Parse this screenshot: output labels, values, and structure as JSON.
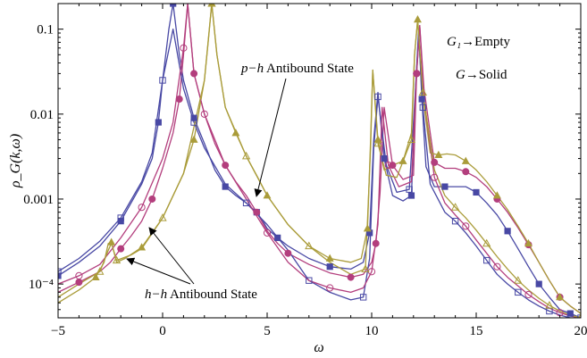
{
  "chart_data": {
    "type": "line",
    "title": "",
    "xlabel": "ω",
    "ylabel": "ρ_G(k,ω)",
    "xlim": [
      -5,
      20
    ],
    "ylim": [
      4e-05,
      0.2
    ],
    "yscale": "log",
    "grid": false,
    "xticks": [
      -5,
      0,
      5,
      10,
      15,
      20
    ],
    "xtick_labels": [
      "−5",
      "0",
      "5",
      "10",
      "15",
      "20"
    ],
    "yticks": [
      0.0001,
      0.001,
      0.01,
      0.1
    ],
    "ytick_labels": [
      "10⁻⁴",
      "0.001",
      "0.01",
      "0.1"
    ],
    "legend": {
      "placement": "top-right",
      "entries": [
        {
          "symbol": "G₁",
          "text": "→Empty"
        },
        {
          "symbol": "G",
          "text": "→Solid"
        }
      ]
    },
    "annotations": [
      {
        "text": "p−h Antibound State",
        "italic_part": "p−h",
        "arrow_to": [
          3.9,
          0.00118
        ]
      },
      {
        "text": "h−h Antibound State",
        "italic_part": "h−h",
        "arrow_to": [
          -2.2,
          0.00055
        ]
      },
      {
        "text": "",
        "arrow_to": [
          -2.4,
          0.00017
        ]
      }
    ],
    "series": [
      {
        "color": "#4848a4",
        "marker": "square",
        "x": [
          -5.0,
          -4.0,
          -3.0,
          -2.0,
          -1.0,
          -0.5,
          -0.2,
          0.0,
          0.3,
          0.5,
          0.8,
          1.0,
          1.5,
          2.0,
          2.5,
          3.0,
          3.5,
          4.0,
          4.5,
          4.8,
          5.0,
          5.5,
          6.0,
          7.0,
          8.0,
          9.0,
          9.6,
          9.9,
          10.1,
          10.3,
          10.6,
          11.0,
          11.5,
          11.9,
          12.1,
          12.25,
          12.4,
          12.6,
          13.0,
          13.5,
          14.0,
          14.5,
          15.0,
          15.5,
          16.0,
          16.5,
          17.0,
          17.5,
          18.0,
          18.5,
          19.0,
          19.5,
          20.0
        ],
        "y": [
          0.000125,
          0.00018,
          0.00028,
          0.00055,
          0.0015,
          0.003,
          0.008,
          0.025,
          0.1,
          0.2,
          0.05,
          0.025,
          0.009,
          0.0045,
          0.0022,
          0.0014,
          0.0011,
          0.0009,
          0.0007,
          0.00055,
          0.00045,
          0.00035,
          0.00028,
          0.0002,
          0.00016,
          0.00015,
          0.00018,
          0.0004,
          0.005,
          0.018,
          0.003,
          0.0011,
          0.00095,
          0.0011,
          0.02,
          0.1,
          0.015,
          0.0024,
          0.0014,
          0.0014,
          0.0014,
          0.0014,
          0.0012,
          0.0009,
          0.00065,
          0.00042,
          0.00026,
          0.00016,
          0.0001,
          7e-05,
          5e-05,
          4.5e-05,
          4e-05
        ]
      },
      {
        "color": "#b33e7d",
        "marker": "circle",
        "x": [
          -5.0,
          -4.0,
          -3.0,
          -2.5,
          -2.0,
          -1.5,
          -1.0,
          -0.5,
          0.0,
          0.5,
          0.8,
          1.0,
          1.2,
          1.5,
          2.0,
          2.5,
          3.0,
          3.5,
          4.0,
          4.5,
          5.0,
          5.5,
          6.0,
          7.0,
          8.0,
          9.0,
          9.6,
          10.0,
          10.2,
          10.4,
          10.6,
          11.0,
          11.5,
          12.0,
          12.15,
          12.3,
          12.5,
          13.0,
          13.5,
          14.0,
          14.5,
          15.0,
          15.5,
          16.0,
          16.5,
          17.0,
          17.5,
          18.0,
          18.5,
          19.0,
          19.5,
          20.0
        ],
        "y": [
          8e-05,
          0.000105,
          0.00014,
          0.00018,
          0.00026,
          0.00037,
          0.00055,
          0.001,
          0.0023,
          0.006,
          0.015,
          0.05,
          0.2,
          0.03,
          0.01,
          0.0045,
          0.0025,
          0.0016,
          0.0011,
          0.0007,
          0.00042,
          0.0003,
          0.00023,
          0.00017,
          0.000135,
          0.00012,
          0.00013,
          0.00018,
          0.0003,
          0.0012,
          0.012,
          0.0025,
          0.0017,
          0.0019,
          0.03,
          0.11,
          0.02,
          0.0027,
          0.0023,
          0.0023,
          0.0021,
          0.0018,
          0.0014,
          0.001,
          0.0007,
          0.00046,
          0.00029,
          0.00018,
          0.00011,
          7e-05,
          5.5e-05,
          4.5e-05
        ]
      },
      {
        "color": "#aa9c3a",
        "marker": "triangle",
        "x": [
          -5.0,
          -4.0,
          -3.2,
          -2.8,
          -2.6,
          -2.45,
          -2.2,
          -1.8,
          -1.0,
          0.0,
          1.0,
          1.5,
          2.0,
          2.2,
          2.35,
          2.6,
          3.0,
          3.5,
          4.0,
          4.5,
          5.0,
          6.0,
          7.0,
          8.0,
          9.0,
          9.5,
          9.8,
          9.95,
          10.05,
          10.3,
          10.6,
          11.0,
          11.5,
          11.9,
          12.05,
          12.2,
          12.4,
          12.8,
          13.2,
          13.6,
          14.0,
          14.5,
          15.0,
          15.5,
          16.0,
          16.5,
          17.0,
          17.5,
          18.0,
          18.5,
          19.0,
          19.5,
          20.0
        ],
        "y": [
          6e-05,
          8.5e-05,
          0.00012,
          0.00018,
          0.0003,
          0.00031,
          0.00018,
          0.0002,
          0.00027,
          0.0006,
          0.002,
          0.005,
          0.025,
          0.08,
          0.2,
          0.05,
          0.012,
          0.006,
          0.0032,
          0.0019,
          0.0011,
          0.0005,
          0.00028,
          0.0002,
          0.00018,
          0.0002,
          0.00045,
          0.005,
          0.033,
          0.005,
          0.0022,
          0.0025,
          0.0028,
          0.006,
          0.05,
          0.13,
          0.02,
          0.0035,
          0.0033,
          0.0034,
          0.0033,
          0.0028,
          0.0022,
          0.0016,
          0.0011,
          0.00075,
          0.00048,
          0.0003,
          0.00018,
          0.00011,
          7e-05,
          5.5e-05,
          4.5e-05
        ]
      },
      {
        "color": "#4848a4",
        "marker": "open-square",
        "x": [
          -5.0,
          -4.0,
          -3.0,
          -2.0,
          -1.0,
          -0.5,
          0.0,
          0.5,
          1.0,
          1.5,
          2.0,
          3.0,
          4.0,
          5.0,
          6.0,
          7.0,
          8.0,
          9.0,
          9.6,
          9.9,
          10.1,
          10.3,
          10.7,
          11.2,
          11.8,
          12.1,
          12.25,
          12.45,
          12.8,
          13.5,
          14.0,
          14.5,
          15.0,
          15.5,
          16.0,
          16.5,
          17.0,
          17.5,
          18.0,
          18.5,
          19.0,
          19.5,
          20.0
        ],
        "y": [
          0.00014,
          0.0002,
          0.00032,
          0.0006,
          0.0016,
          0.0035,
          0.025,
          0.1,
          0.02,
          0.008,
          0.004,
          0.0015,
          0.0009,
          0.0005,
          0.00025,
          0.00011,
          8e-05,
          6.5e-05,
          7e-05,
          0.0002,
          0.004,
          0.016,
          0.0025,
          0.0012,
          0.0013,
          0.02,
          0.09,
          0.012,
          0.0015,
          0.0007,
          0.00055,
          0.0004,
          0.00028,
          0.00019,
          0.00013,
          0.0001,
          8e-05,
          6.5e-05,
          5.5e-05,
          4.8e-05,
          4.3e-05,
          4e-05,
          4e-05
        ]
      },
      {
        "color": "#b33e7d",
        "marker": "open-circle",
        "x": [
          -5.0,
          -4.0,
          -3.0,
          -2.0,
          -1.0,
          0.0,
          0.5,
          1.0,
          1.2,
          1.5,
          2.0,
          3.0,
          4.0,
          5.0,
          6.0,
          7.0,
          8.0,
          9.0,
          9.6,
          10.0,
          10.3,
          10.5,
          10.8,
          11.3,
          11.9,
          12.15,
          12.3,
          12.5,
          13.0,
          13.5,
          14.0,
          14.5,
          15.0,
          15.5,
          16.0,
          16.5,
          17.0,
          17.5,
          18.0,
          18.5,
          19.0,
          19.5,
          20.0
        ],
        "y": [
          0.0001,
          0.000125,
          0.00017,
          0.00035,
          0.0008,
          0.003,
          0.008,
          0.06,
          0.2,
          0.03,
          0.01,
          0.0025,
          0.001,
          0.0004,
          0.00018,
          0.00011,
          9e-05,
          8e-05,
          9e-05,
          0.00014,
          0.0005,
          0.012,
          0.0025,
          0.0014,
          0.0016,
          0.03,
          0.11,
          0.015,
          0.0018,
          0.0009,
          0.00065,
          0.00048,
          0.00033,
          0.00023,
          0.00016,
          0.00012,
          9.5e-05,
          7.5e-05,
          6.2e-05,
          5.2e-05,
          4.6e-05,
          4.2e-05,
          4e-05
        ]
      },
      {
        "color": "#aa9c3a",
        "marker": "open-triangle",
        "x": [
          -5.0,
          -4.0,
          -3.0,
          -2.6,
          -2.45,
          -2.2,
          -1.5,
          -1.0,
          0.0,
          1.0,
          2.0,
          2.35,
          2.6,
          3.0,
          4.0,
          5.0,
          6.0,
          7.0,
          8.0,
          9.0,
          9.7,
          9.95,
          10.05,
          10.3,
          10.7,
          11.2,
          11.9,
          12.05,
          12.2,
          12.45,
          13.0,
          13.5,
          14.0,
          14.5,
          15.0,
          15.5,
          16.0,
          16.5,
          17.0,
          17.5,
          18.0,
          18.5,
          19.0,
          19.5,
          20.0
        ],
        "y": [
          7e-05,
          0.0001,
          0.00014,
          0.00025,
          0.0003,
          0.00019,
          0.00022,
          0.00026,
          0.0006,
          0.002,
          0.025,
          0.2,
          0.05,
          0.012,
          0.0032,
          0.0011,
          0.0005,
          0.00028,
          0.00018,
          0.00013,
          0.00015,
          0.004,
          0.033,
          0.0045,
          0.0019,
          0.0018,
          0.005,
          0.05,
          0.13,
          0.018,
          0.0022,
          0.0011,
          0.0008,
          0.0006,
          0.00043,
          0.0003,
          0.00021,
          0.00015,
          0.00011,
          8.5e-05,
          6.8e-05,
          5.6e-05,
          4.8e-05,
          4.3e-05,
          4e-05
        ]
      }
    ]
  }
}
